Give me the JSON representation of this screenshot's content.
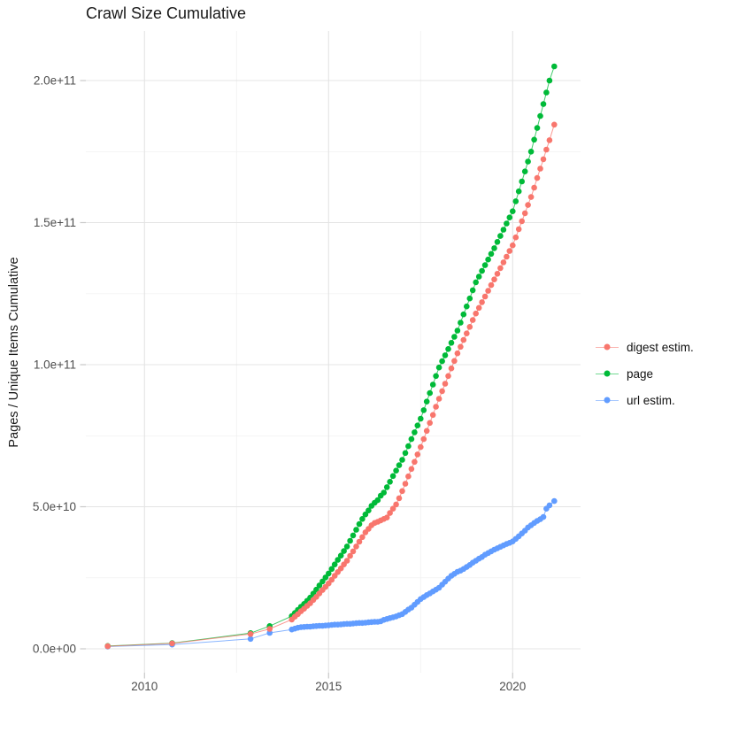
{
  "legend": {
    "items": [
      {
        "label": "digest estim.",
        "color": "#F8766D"
      },
      {
        "label": "page",
        "color": "#00BA38"
      },
      {
        "label": "url estim.",
        "color": "#619CFF"
      }
    ]
  },
  "axes": {
    "y_tick_labels": [
      "0.0e+00",
      "5.0e+10",
      "1.0e+11",
      "1.5e+11",
      "2.0e+11"
    ],
    "y_tick_values_e9": [
      0,
      50,
      100,
      150,
      200
    ],
    "y_minor_e9": [
      25,
      75,
      125,
      175
    ],
    "x_tick_labels": [
      "2010",
      "2015",
      "2020"
    ],
    "x_tick_values": [
      2010,
      2015,
      2020
    ],
    "x_minor_values": [
      2012.5,
      2017.5
    ],
    "grid_major_color": "#e4e4e4",
    "grid_minor_color": "#efefef",
    "tick_mark_color": "#c9c9c9",
    "tick_text_color": "#4d4d4d"
  },
  "chart_data": {
    "type": "scatter",
    "title": "Crawl Size Cumulative",
    "xlabel": "",
    "ylabel": "Pages / Unique Items Cumulative",
    "value_unit": "pages (values in billions, 1e9)",
    "xlim": [
      2008.4,
      2021.85
    ],
    "ylim_e9": [
      -8,
      217
    ],
    "grid": true,
    "legend_position": "right",
    "x": [
      2009,
      2010.75,
      2012.88,
      2013.4,
      2014,
      2014.083,
      2014.167,
      2014.25,
      2014.333,
      2014.417,
      2014.5,
      2014.583,
      2014.667,
      2014.75,
      2014.833,
      2014.917,
      2015,
      2015.083,
      2015.167,
      2015.25,
      2015.333,
      2015.417,
      2015.5,
      2015.583,
      2015.667,
      2015.75,
      2015.833,
      2015.917,
      2016,
      2016.083,
      2016.167,
      2016.25,
      2016.333,
      2016.417,
      2016.5,
      2016.583,
      2016.667,
      2016.75,
      2016.833,
      2016.917,
      2017,
      2017.083,
      2017.167,
      2017.25,
      2017.333,
      2017.417,
      2017.5,
      2017.583,
      2017.667,
      2017.75,
      2017.833,
      2017.917,
      2018,
      2018.083,
      2018.167,
      2018.25,
      2018.333,
      2018.417,
      2018.5,
      2018.583,
      2018.667,
      2018.75,
      2018.833,
      2018.917,
      2019,
      2019.083,
      2019.167,
      2019.25,
      2019.333,
      2019.417,
      2019.5,
      2019.583,
      2019.667,
      2019.75,
      2019.833,
      2019.917,
      2020,
      2020.083,
      2020.167,
      2020.25,
      2020.333,
      2020.417,
      2020.5,
      2020.583,
      2020.667,
      2020.75,
      2020.833,
      2020.917,
      2021,
      2021.13
    ],
    "series": [
      {
        "name": "digest estim.",
        "color": "#F8766D",
        "values_e9": [
          0.9,
          1.9,
          5.2,
          7,
          10.3,
          11.3,
          12.2,
          13.2,
          14.1,
          15.1,
          16,
          17.2,
          18.3,
          19.5,
          20.7,
          21.8,
          23,
          24.3,
          25.7,
          27,
          28.3,
          29.7,
          31,
          32.7,
          34.3,
          36,
          37.7,
          39.3,
          41,
          42.2,
          43.5,
          44.3,
          44.7,
          45.2,
          45.7,
          46.2,
          47.8,
          49.3,
          50.8,
          53,
          55.5,
          58.1,
          60.7,
          63.3,
          65.8,
          68.4,
          71,
          73.8,
          76.7,
          79.5,
          82.3,
          85.2,
          88,
          90.7,
          93.3,
          96,
          98.7,
          101.3,
          104,
          106.3,
          108.7,
          111,
          113.3,
          115.7,
          118,
          120,
          122,
          124,
          126,
          128,
          130,
          132,
          134,
          136,
          138,
          140,
          142,
          144.8,
          147.7,
          150.5,
          153.3,
          156.2,
          159,
          162.3,
          165.7,
          169,
          172.3,
          175.7,
          179,
          184.5
        ]
      },
      {
        "name": "page",
        "color": "#00BA38",
        "values_e9": [
          1,
          2,
          5.5,
          8,
          11.5,
          12.6,
          13.7,
          14.8,
          15.8,
          16.9,
          18,
          19.4,
          20.8,
          22.3,
          23.7,
          25.1,
          26.5,
          28.1,
          29.7,
          31.3,
          32.8,
          34.4,
          36,
          38,
          39.9,
          41.9,
          43.9,
          45.7,
          47.3,
          48.7,
          50.3,
          51.4,
          52.3,
          53.9,
          55,
          56.9,
          58.8,
          60.8,
          62.7,
          64.6,
          66.5,
          68.9,
          71.3,
          73.8,
          76.2,
          78.6,
          81,
          84,
          87,
          90,
          93,
          96,
          99,
          101.2,
          103.3,
          105.5,
          107.7,
          109.8,
          112,
          114.8,
          117.7,
          120.5,
          123.3,
          126.2,
          129,
          131,
          133,
          135,
          137,
          139,
          141,
          143.2,
          145.3,
          147.5,
          149.7,
          151.8,
          154,
          157.5,
          161,
          164.5,
          168,
          171.5,
          175,
          179.2,
          183.3,
          187.5,
          191.7,
          195.8,
          200,
          205
        ]
      },
      {
        "name": "url estim.",
        "color": "#619CFF",
        "values_e9": [
          0.8,
          1.5,
          3.5,
          5.6,
          6.8,
          7.1,
          7.4,
          7.6,
          7.7,
          7.8,
          7.8,
          7.9,
          8,
          8.1,
          8.1,
          8.2,
          8.3,
          8.4,
          8.5,
          8.5,
          8.6,
          8.7,
          8.8,
          8.8,
          8.9,
          9,
          9.1,
          9.1,
          9.2,
          9.3,
          9.4,
          9.5,
          9.5,
          9.7,
          10.2,
          10.5,
          10.8,
          11.1,
          11.4,
          11.8,
          12.2,
          13,
          13.8,
          14.5,
          15.5,
          16.5,
          17.5,
          18.2,
          18.9,
          19.5,
          20.2,
          20.8,
          21.5,
          22.6,
          23.6,
          24.7,
          25.7,
          26.4,
          27.1,
          27.5,
          28.1,
          28.8,
          29.5,
          30.3,
          31,
          31.7,
          32.3,
          33.1,
          33.7,
          34.3,
          34.9,
          35.4,
          35.9,
          36.4,
          36.9,
          37.3,
          37.8,
          38.7,
          39.6,
          40.6,
          41.6,
          42.7,
          43.5,
          44.3,
          45,
          45.6,
          46.4,
          49.3,
          50.5,
          52
        ]
      }
    ]
  }
}
